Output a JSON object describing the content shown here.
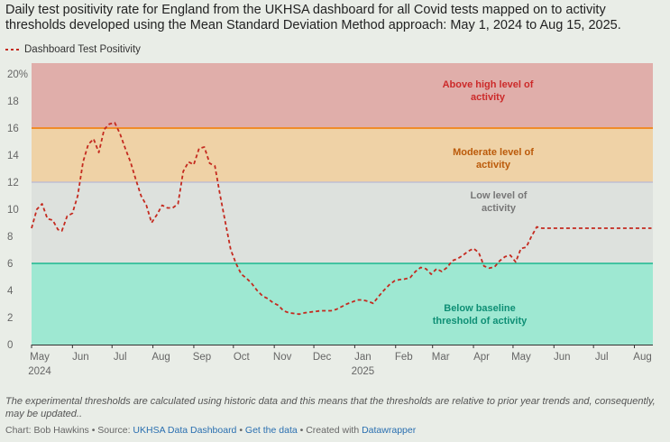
{
  "title": "Daily test positivity rate for England from the UKHSA dashboard for all Covid tests mapped on to activity thresholds developed using the Mean Standard Deviation Method approach: May 1, 2024 to Aug 15, 2025.",
  "legend": {
    "label": "Dashboard Test Positivity",
    "color": "#c42a1f"
  },
  "notes": "The experimental thresholds are calculated using historic data and this means that the thresholds are relative to prior year trends and, consequently, may be updated..",
  "credit": {
    "chart_by": "Chart: Bob Hawkins",
    "sep1": " • Source: ",
    "source": "UKHSA Data Dashboard",
    "sep2": " • ",
    "get_data": "Get the data",
    "sep3": " • Created with ",
    "tool": "Datawrapper"
  },
  "chart_data": {
    "type": "line",
    "title": "Daily test positivity rate for England",
    "xlabel": "",
    "ylabel": "",
    "ylim": [
      0,
      20.8
    ],
    "y_ticks": [
      "0",
      "2",
      "4",
      "6",
      "8",
      "10",
      "12",
      "14",
      "16",
      "18",
      "20%"
    ],
    "y_tick_values": [
      0,
      2,
      4,
      6,
      8,
      10,
      12,
      14,
      16,
      18,
      20
    ],
    "x_ticks": [
      {
        "label": "May",
        "sub": "2024",
        "day": 0
      },
      {
        "label": "Jun",
        "sub": "",
        "day": 31
      },
      {
        "label": "Jul",
        "sub": "",
        "day": 61
      },
      {
        "label": "Aug",
        "sub": "",
        "day": 92
      },
      {
        "label": "Sep",
        "sub": "",
        "day": 123
      },
      {
        "label": "Oct",
        "sub": "",
        "day": 153
      },
      {
        "label": "Nov",
        "sub": "",
        "day": 184
      },
      {
        "label": "Dec",
        "sub": "",
        "day": 214
      },
      {
        "label": "Jan",
        "sub": "2025",
        "day": 245
      },
      {
        "label": "Feb",
        "sub": "",
        "day": 276
      },
      {
        "label": "Mar",
        "sub": "",
        "day": 304
      },
      {
        "label": "Apr",
        "sub": "",
        "day": 335
      },
      {
        "label": "May",
        "sub": "",
        "day": 365
      },
      {
        "label": "Jun",
        "sub": "",
        "day": 396
      },
      {
        "label": "Jul",
        "sub": "",
        "day": 426
      },
      {
        "label": "Aug",
        "sub": "",
        "day": 457
      }
    ],
    "x_range_days": [
      0,
      471
    ],
    "bands": [
      {
        "from": 16,
        "to": 20.8,
        "color": "#e0aeaa",
        "label": "Above high level of activity",
        "label_color": "#cc2a2a",
        "line_color": "#f08c2a"
      },
      {
        "from": 12,
        "to": 16,
        "color": "#efd2a6",
        "label": "Moderate level of activity",
        "label_color": "#bb5a0a",
        "line_color": "#b9b9d6"
      },
      {
        "from": 6,
        "to": 12,
        "color": "#dde1dd",
        "label": "Low level of activity",
        "label_color": "#777777",
        "line_color": "#1bb890"
      },
      {
        "from": 0,
        "to": 6,
        "color": "#9ee8d2",
        "label": "Below baseline threshold of activity",
        "label_color": "#0e8f75",
        "line_color": null
      }
    ],
    "series": [
      {
        "name": "Dashboard Test Positivity",
        "x": [
          0,
          4,
          8,
          12,
          16,
          20,
          23,
          27,
          31,
          35,
          39,
          43,
          47,
          51,
          55,
          59,
          63,
          67,
          71,
          75,
          79,
          83,
          87,
          91,
          95,
          99,
          103,
          107,
          111,
          115,
          119,
          123,
          127,
          131,
          135,
          139,
          143,
          147,
          151,
          155,
          159,
          163,
          167,
          171,
          175,
          179,
          183,
          187,
          191,
          195,
          199,
          203,
          207,
          211,
          215,
          219,
          223,
          227,
          231,
          235,
          239,
          243,
          247,
          251,
          255,
          259,
          263,
          267,
          271,
          275,
          279,
          283,
          287,
          291,
          295,
          299,
          303,
          307,
          311,
          315,
          319,
          323,
          327,
          331,
          335,
          339,
          343,
          347,
          351,
          355,
          359,
          363,
          367,
          371,
          375,
          379,
          383,
          387,
          391,
          395,
          399,
          403,
          407,
          411,
          415,
          419,
          423,
          427,
          431,
          435,
          439,
          443,
          447,
          451,
          455,
          459,
          463,
          467,
          470
        ],
        "values": [
          8.6,
          10.0,
          10.4,
          9.3,
          9.2,
          8.5,
          8.4,
          9.5,
          9.7,
          11.0,
          13.5,
          14.8,
          15.2,
          14.2,
          15.9,
          16.3,
          16.4,
          15.6,
          14.5,
          13.5,
          12.2,
          11.0,
          10.3,
          9.0,
          9.6,
          10.3,
          10.1,
          10.1,
          10.4,
          12.8,
          13.5,
          13.3,
          14.5,
          14.6,
          13.4,
          13.2,
          11.0,
          9.0,
          7.0,
          6.0,
          5.2,
          4.9,
          4.5,
          4.0,
          3.6,
          3.4,
          3.1,
          2.9,
          2.5,
          2.35,
          2.3,
          2.25,
          2.35,
          2.4,
          2.45,
          2.5,
          2.5,
          2.5,
          2.6,
          2.8,
          3.0,
          3.15,
          3.3,
          3.3,
          3.2,
          3.05,
          3.55,
          4.0,
          4.4,
          4.7,
          4.8,
          4.85,
          4.95,
          5.4,
          5.7,
          5.6,
          5.2,
          5.6,
          5.4,
          5.7,
          6.2,
          6.35,
          6.6,
          6.9,
          7.1,
          6.8,
          5.8,
          5.65,
          5.75,
          6.2,
          6.5,
          6.6,
          6.1,
          7.1,
          7.2,
          8.0,
          8.7,
          8.6,
          8.6,
          8.6,
          8.6,
          8.6,
          8.6,
          8.6,
          8.6,
          8.6,
          8.6,
          8.6,
          8.6,
          8.6,
          8.6,
          8.6,
          8.6,
          8.6,
          8.6,
          8.6,
          8.6,
          8.6,
          8.6
        ]
      }
    ]
  }
}
